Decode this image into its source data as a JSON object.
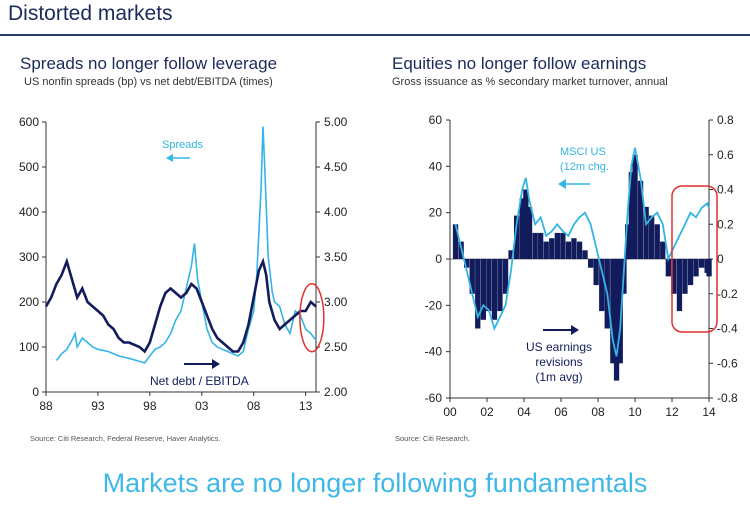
{
  "page_title": "Distorted markets",
  "footer_text": "Markets are no longer following fundamentals",
  "colors": {
    "light": "#33b5e5",
    "dark": "#121c5c",
    "highlight": "#e03030",
    "title": "#1a2a5a"
  },
  "chart_data": [
    {
      "type": "line",
      "title": "Spreads no longer follow leverage",
      "subtitle": "US nonfin spreads (bp) vs net debt/EBITDA (times)",
      "source": "Source: Citi Research, Federal Reserve, Haver Analytics.",
      "x_ticks": [
        "88",
        "93",
        "98",
        "03",
        "08",
        "13"
      ],
      "x_range": [
        1988,
        2014
      ],
      "y_left": {
        "range": [
          0,
          600
        ],
        "ticks": [
          "0",
          "100",
          "200",
          "300",
          "400",
          "500",
          "600"
        ]
      },
      "y_right": {
        "range": [
          2.0,
          5.0
        ],
        "ticks": [
          "2.00",
          "2.50",
          "3.00",
          "3.50",
          "4.00",
          "4.50",
          "5.00"
        ]
      },
      "annotations": [
        {
          "text": "Spreads",
          "arrow": "left"
        },
        {
          "text": "Net debt / EBITDA",
          "arrow": "right"
        }
      ],
      "series": [
        {
          "name": "Spreads",
          "axis": "left",
          "color": "#33b5e5",
          "points": [
            [
              1989.0,
              70
            ],
            [
              1989.5,
              85
            ],
            [
              1990.0,
              95
            ],
            [
              1990.5,
              115
            ],
            [
              1990.8,
              130
            ],
            [
              1991.0,
              100
            ],
            [
              1991.5,
              120
            ],
            [
              1992.0,
              110
            ],
            [
              1992.5,
              100
            ],
            [
              1993.0,
              95
            ],
            [
              1994.0,
              90
            ],
            [
              1995.0,
              80
            ],
            [
              1996.0,
              75
            ],
            [
              1997.0,
              68
            ],
            [
              1997.5,
              65
            ],
            [
              1998.0,
              80
            ],
            [
              1998.5,
              95
            ],
            [
              1999.0,
              100
            ],
            [
              1999.5,
              110
            ],
            [
              2000.0,
              130
            ],
            [
              2000.5,
              160
            ],
            [
              2001.0,
              180
            ],
            [
              2001.5,
              230
            ],
            [
              2002.0,
              280
            ],
            [
              2002.3,
              330
            ],
            [
              2002.6,
              250
            ],
            [
              2003.0,
              200
            ],
            [
              2003.5,
              140
            ],
            [
              2004.0,
              110
            ],
            [
              2004.5,
              100
            ],
            [
              2005.0,
              95
            ],
            [
              2005.5,
              90
            ],
            [
              2006.0,
              85
            ],
            [
              2006.5,
              80
            ],
            [
              2007.0,
              90
            ],
            [
              2007.5,
              140
            ],
            [
              2008.0,
              180
            ],
            [
              2008.3,
              260
            ],
            [
              2008.7,
              450
            ],
            [
              2008.9,
              590
            ],
            [
              2009.1,
              480
            ],
            [
              2009.4,
              300
            ],
            [
              2009.8,
              220
            ],
            [
              2010.0,
              200
            ],
            [
              2010.5,
              190
            ],
            [
              2011.0,
              150
            ],
            [
              2011.5,
              130
            ],
            [
              2012.0,
              180
            ],
            [
              2012.5,
              170
            ],
            [
              2013.0,
              140
            ],
            [
              2013.5,
              130
            ],
            [
              2014.0,
              115
            ]
          ]
        },
        {
          "name": "Net debt / EBITDA",
          "axis": "right",
          "color": "#121c5c",
          "points": [
            [
              1988.0,
              2.95
            ],
            [
              1988.5,
              3.05
            ],
            [
              1989.0,
              3.2
            ],
            [
              1989.5,
              3.3
            ],
            [
              1990.0,
              3.45
            ],
            [
              1990.5,
              3.25
            ],
            [
              1991.0,
              3.05
            ],
            [
              1991.5,
              3.15
            ],
            [
              1992.0,
              3.0
            ],
            [
              1992.5,
              2.95
            ],
            [
              1993.0,
              2.9
            ],
            [
              1993.5,
              2.85
            ],
            [
              1994.0,
              2.75
            ],
            [
              1994.5,
              2.7
            ],
            [
              1995.0,
              2.6
            ],
            [
              1995.5,
              2.55
            ],
            [
              1996.0,
              2.55
            ],
            [
              1997.0,
              2.5
            ],
            [
              1997.5,
              2.45
            ],
            [
              1998.0,
              2.55
            ],
            [
              1998.5,
              2.75
            ],
            [
              1999.0,
              2.95
            ],
            [
              1999.5,
              3.1
            ],
            [
              2000.0,
              3.15
            ],
            [
              2000.5,
              3.1
            ],
            [
              2001.0,
              3.05
            ],
            [
              2001.5,
              3.1
            ],
            [
              2002.0,
              3.2
            ],
            [
              2002.5,
              3.15
            ],
            [
              2003.0,
              3.0
            ],
            [
              2003.5,
              2.85
            ],
            [
              2004.0,
              2.7
            ],
            [
              2004.5,
              2.6
            ],
            [
              2005.0,
              2.55
            ],
            [
              2005.5,
              2.5
            ],
            [
              2006.0,
              2.45
            ],
            [
              2006.5,
              2.45
            ],
            [
              2007.0,
              2.55
            ],
            [
              2007.5,
              2.75
            ],
            [
              2008.0,
              3.05
            ],
            [
              2008.5,
              3.35
            ],
            [
              2008.9,
              3.45
            ],
            [
              2009.2,
              3.3
            ],
            [
              2009.5,
              3.0
            ],
            [
              2010.0,
              2.8
            ],
            [
              2010.5,
              2.7
            ],
            [
              2011.0,
              2.75
            ],
            [
              2011.5,
              2.8
            ],
            [
              2012.0,
              2.85
            ],
            [
              2012.5,
              2.9
            ],
            [
              2013.0,
              2.9
            ],
            [
              2013.5,
              3.0
            ],
            [
              2014.0,
              2.95
            ]
          ]
        }
      ]
    },
    {
      "type": "bar+line",
      "title": "Equities no longer follow earnings",
      "subtitle": "Gross issuance as % secondary market turnover, annual",
      "source": "Source: Citi Research.",
      "x_ticks": [
        "00",
        "02",
        "04",
        "06",
        "08",
        "10",
        "12",
        "14"
      ],
      "x_range": [
        2000,
        2014
      ],
      "y_left": {
        "range": [
          -60,
          60
        ],
        "ticks": [
          "-60",
          "-40",
          "-20",
          "0",
          "20",
          "40",
          "60"
        ]
      },
      "y_right": {
        "range": [
          -0.8,
          0.8
        ],
        "ticks": [
          "-0.8",
          "-0.6",
          "-0.4",
          "-0.2",
          "0",
          "0.2",
          "0.4",
          "0.6",
          "0.8"
        ]
      },
      "annotations": [
        {
          "text": "MSCI US",
          "text2": "(12m chg.",
          "arrow": "left"
        },
        {
          "text": "US earnings",
          "text2": "revisions",
          "text3": "(1m avg)",
          "arrow": "right"
        }
      ],
      "series": [
        {
          "name": "MSCI US",
          "axis": "left",
          "color": "#33b5e5",
          "kind": "line",
          "points": [
            [
              2000.3,
              15
            ],
            [
              2000.6,
              5
            ],
            [
              2000.9,
              -5
            ],
            [
              2001.2,
              -15
            ],
            [
              2001.5,
              -25
            ],
            [
              2001.8,
              -20
            ],
            [
              2002.1,
              -22
            ],
            [
              2002.4,
              -30
            ],
            [
              2002.7,
              -25
            ],
            [
              2003.0,
              -20
            ],
            [
              2003.3,
              -5
            ],
            [
              2003.6,
              15
            ],
            [
              2003.9,
              30
            ],
            [
              2004.1,
              35
            ],
            [
              2004.3,
              25
            ],
            [
              2004.6,
              15
            ],
            [
              2004.9,
              18
            ],
            [
              2005.2,
              10
            ],
            [
              2005.5,
              12
            ],
            [
              2005.8,
              15
            ],
            [
              2006.1,
              12
            ],
            [
              2006.4,
              10
            ],
            [
              2006.7,
              15
            ],
            [
              2007.0,
              18
            ],
            [
              2007.3,
              20
            ],
            [
              2007.6,
              15
            ],
            [
              2007.9,
              5
            ],
            [
              2008.2,
              -5
            ],
            [
              2008.5,
              -15
            ],
            [
              2008.8,
              -35
            ],
            [
              2009.0,
              -42
            ],
            [
              2009.2,
              -30
            ],
            [
              2009.4,
              -5
            ],
            [
              2009.6,
              20
            ],
            [
              2009.8,
              40
            ],
            [
              2010.0,
              48
            ],
            [
              2010.3,
              35
            ],
            [
              2010.6,
              15
            ],
            [
              2010.9,
              18
            ],
            [
              2011.2,
              20
            ],
            [
              2011.5,
              15
            ],
            [
              2011.8,
              0
            ],
            [
              2012.1,
              5
            ],
            [
              2012.4,
              10
            ],
            [
              2012.7,
              15
            ],
            [
              2013.0,
              20
            ],
            [
              2013.3,
              18
            ],
            [
              2013.6,
              22
            ],
            [
              2013.9,
              24
            ],
            [
              2014.0,
              22
            ]
          ]
        },
        {
          "name": "US earnings revisions",
          "axis": "right",
          "color": "#121c5c",
          "kind": "bar",
          "points": [
            [
              2000.3,
              0.2
            ],
            [
              2000.6,
              0.1
            ],
            [
              2000.9,
              -0.05
            ],
            [
              2001.2,
              -0.2
            ],
            [
              2001.5,
              -0.4
            ],
            [
              2001.8,
              -0.35
            ],
            [
              2002.1,
              -0.3
            ],
            [
              2002.4,
              -0.35
            ],
            [
              2002.7,
              -0.3
            ],
            [
              2003.0,
              -0.2
            ],
            [
              2003.3,
              0.05
            ],
            [
              2003.6,
              0.25
            ],
            [
              2003.9,
              0.35
            ],
            [
              2004.1,
              0.4
            ],
            [
              2004.3,
              0.3
            ],
            [
              2004.6,
              0.15
            ],
            [
              2004.9,
              0.15
            ],
            [
              2005.2,
              0.1
            ],
            [
              2005.5,
              0.12
            ],
            [
              2005.8,
              0.15
            ],
            [
              2006.1,
              0.15
            ],
            [
              2006.4,
              0.1
            ],
            [
              2006.7,
              0.12
            ],
            [
              2007.0,
              0.1
            ],
            [
              2007.3,
              0.05
            ],
            [
              2007.6,
              -0.05
            ],
            [
              2007.9,
              -0.15
            ],
            [
              2008.2,
              -0.3
            ],
            [
              2008.5,
              -0.4
            ],
            [
              2008.8,
              -0.6
            ],
            [
              2009.0,
              -0.7
            ],
            [
              2009.2,
              -0.6
            ],
            [
              2009.4,
              -0.2
            ],
            [
              2009.6,
              0.2
            ],
            [
              2009.8,
              0.5
            ],
            [
              2010.0,
              0.6
            ],
            [
              2010.3,
              0.45
            ],
            [
              2010.6,
              0.3
            ],
            [
              2010.9,
              0.25
            ],
            [
              2011.2,
              0.2
            ],
            [
              2011.5,
              0.1
            ],
            [
              2011.8,
              -0.1
            ],
            [
              2012.1,
              -0.2
            ],
            [
              2012.4,
              -0.3
            ],
            [
              2012.7,
              -0.2
            ],
            [
              2013.0,
              -0.15
            ],
            [
              2013.3,
              -0.1
            ],
            [
              2013.6,
              -0.05
            ],
            [
              2013.9,
              -0.08
            ],
            [
              2014.0,
              -0.1
            ]
          ]
        }
      ]
    }
  ]
}
